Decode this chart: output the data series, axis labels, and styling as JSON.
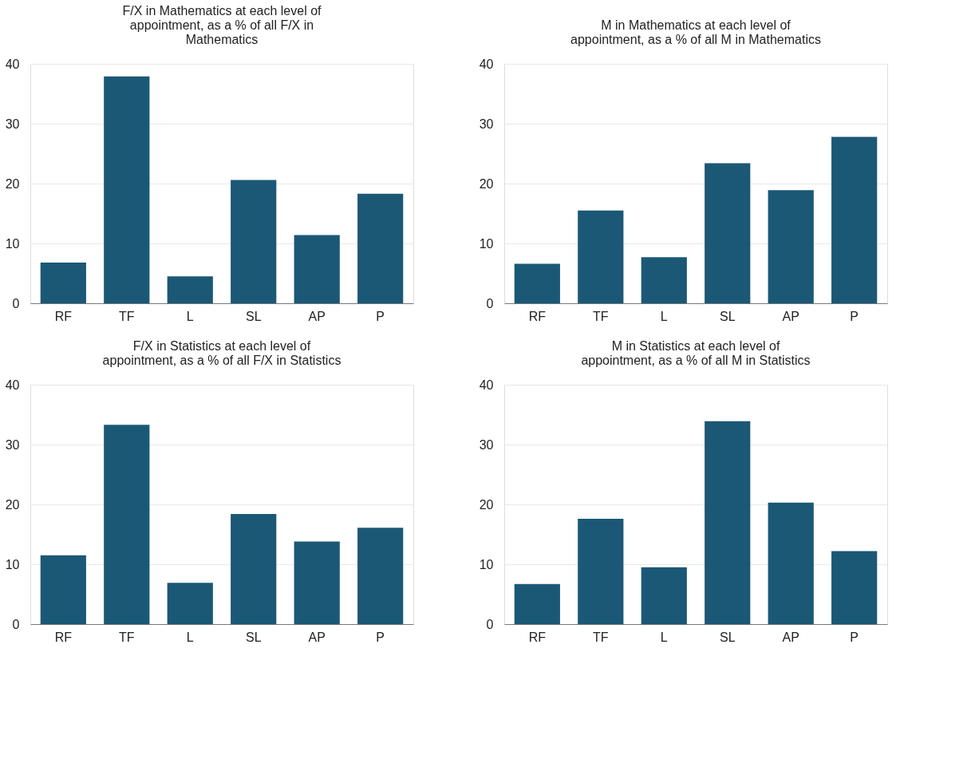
{
  "chart_data": [
    {
      "type": "bar",
      "title": "F/X in Mathematics at each level of appointment, as a % of all F/X in Mathematics",
      "categories": [
        "RF",
        "TF",
        "L",
        "SL",
        "AP",
        "P"
      ],
      "values": [
        6.8,
        37.9,
        4.5,
        20.6,
        11.4,
        18.3
      ],
      "color": "#1b5876",
      "ylim": [
        0,
        40
      ],
      "yticks": [
        0,
        10,
        20,
        30,
        40
      ],
      "grid": "y"
    },
    {
      "type": "bar",
      "title": "M in Mathematics at each level of appointment, as a % of all M in Mathematics",
      "categories": [
        "RF",
        "TF",
        "L",
        "SL",
        "AP",
        "P"
      ],
      "values": [
        6.6,
        15.5,
        7.7,
        23.4,
        18.9,
        27.8
      ],
      "color": "#1b5876",
      "ylim": [
        0,
        40
      ],
      "yticks": [
        0,
        10,
        20,
        30,
        40
      ],
      "grid": "y"
    },
    {
      "type": "bar",
      "title": "F/X in Statistics at each level of appointment, as a % of all F/X in Statistics",
      "categories": [
        "RF",
        "TF",
        "L",
        "SL",
        "AP",
        "P"
      ],
      "values": [
        11.5,
        33.3,
        6.9,
        18.4,
        13.8,
        16.1
      ],
      "color": "#1b5876",
      "ylim": [
        0,
        40
      ],
      "yticks": [
        0,
        10,
        20,
        30,
        40
      ],
      "grid": "y"
    },
    {
      "type": "bar",
      "title": "M in Statistics at each level of appointment, as a % of all M in Statistics",
      "categories": [
        "RF",
        "TF",
        "L",
        "SL",
        "AP",
        "P"
      ],
      "values": [
        6.7,
        17.6,
        9.5,
        33.9,
        20.3,
        12.2
      ],
      "color": "#1b5876",
      "ylim": [
        0,
        40
      ],
      "yticks": [
        0,
        10,
        20,
        30,
        40
      ],
      "grid": "y"
    }
  ]
}
